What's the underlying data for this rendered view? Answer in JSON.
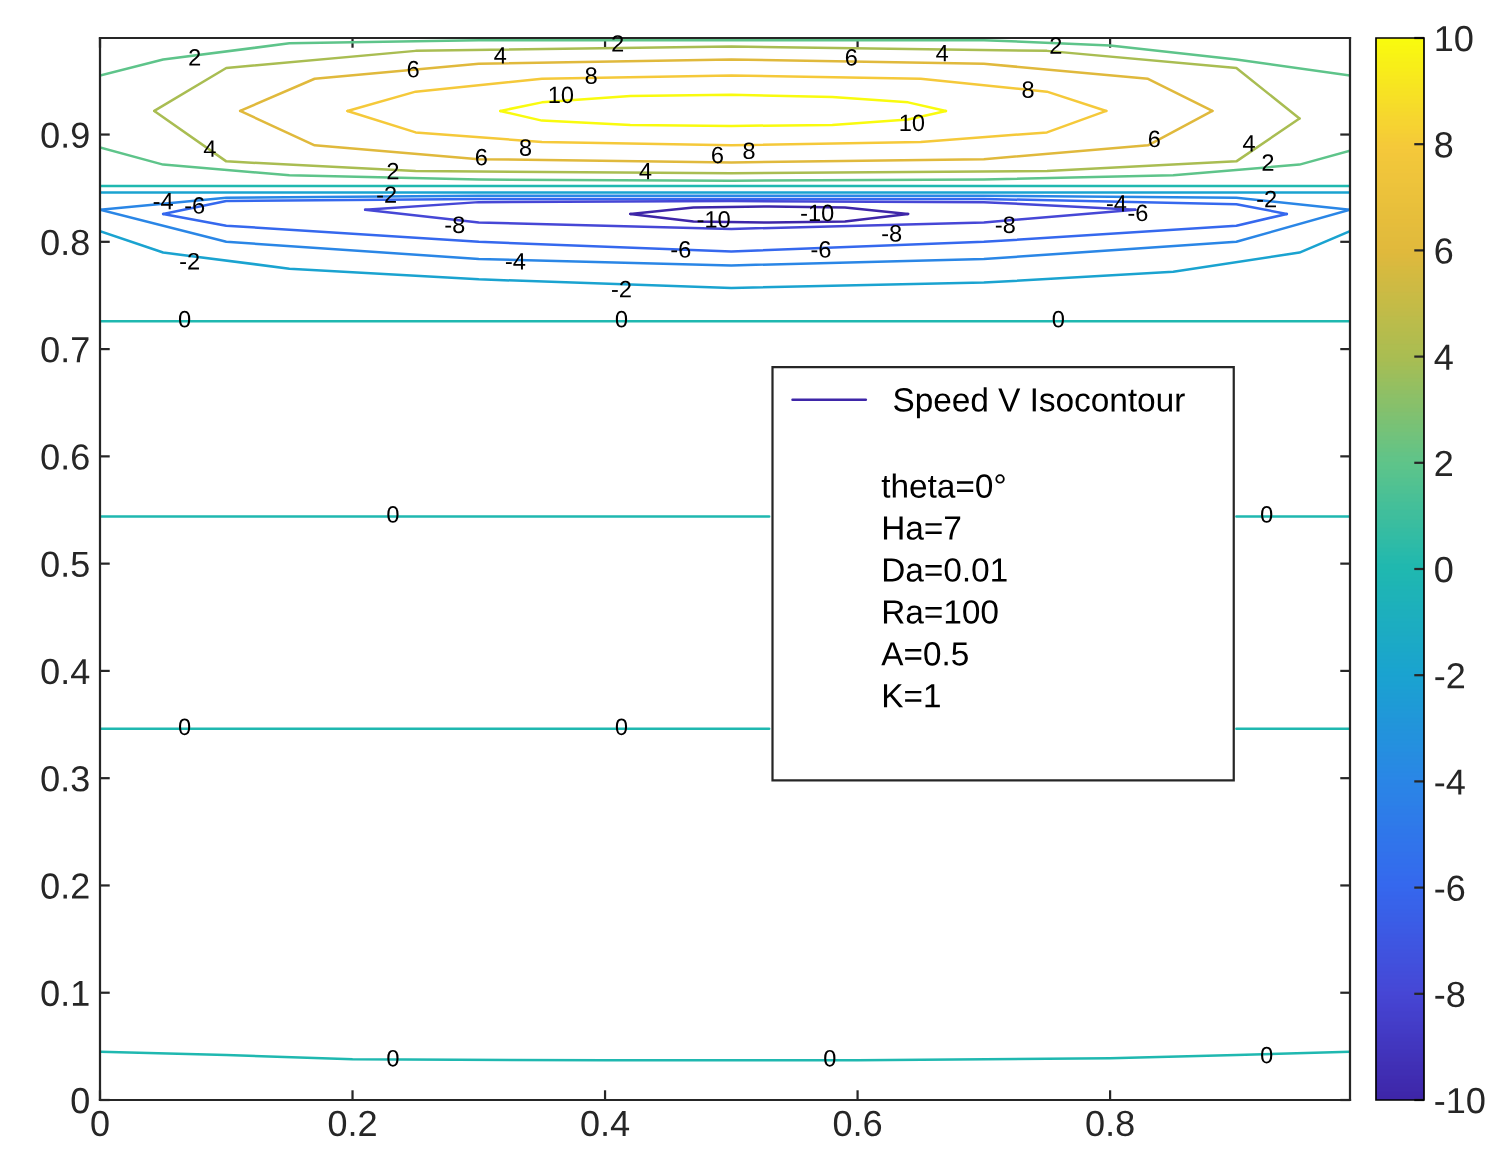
{
  "chart_data": {
    "type": "line",
    "xlim": [
      0,
      0.99
    ],
    "ylim": [
      0,
      0.99
    ],
    "xticks": [
      0,
      0.2,
      0.4,
      0.6,
      0.8
    ],
    "yticks": [
      0,
      0.1,
      0.2,
      0.3,
      0.4,
      0.5,
      0.6,
      0.7,
      0.8,
      0.9
    ],
    "grid": false,
    "legend": "right",
    "clim": [
      -10,
      10
    ],
    "cticks": [
      -10,
      -8,
      -6,
      -4,
      -2,
      0,
      2,
      4,
      6,
      8,
      10
    ],
    "series": [
      {
        "color": "#f9fb0e",
        "x": [
          0.317,
          0.35,
          0.42,
          0.5,
          0.58,
          0.64,
          0.67
        ],
        "values": [
          0.922,
          0.93,
          0.936,
          0.937,
          0.935,
          0.93,
          0.922
        ]
      },
      {
        "color": "#f9fb0e",
        "x": [
          0.317,
          0.35,
          0.42,
          0.5,
          0.58,
          0.64,
          0.67
        ],
        "values": [
          0.922,
          0.913,
          0.909,
          0.908,
          0.909,
          0.914,
          0.922
        ]
      },
      {
        "color": "#f5c93a",
        "x": [
          0.196,
          0.25,
          0.35,
          0.5,
          0.65,
          0.75,
          0.797
        ],
        "values": [
          0.922,
          0.94,
          0.952,
          0.955,
          0.952,
          0.94,
          0.922
        ]
      },
      {
        "color": "#f5c93a",
        "x": [
          0.196,
          0.25,
          0.35,
          0.5,
          0.65,
          0.75,
          0.797
        ],
        "values": [
          0.922,
          0.902,
          0.893,
          0.89,
          0.893,
          0.902,
          0.922
        ]
      },
      {
        "color": "#e0b93c",
        "x": [
          0.111,
          0.17,
          0.3,
          0.5,
          0.7,
          0.83,
          0.881
        ],
        "values": [
          0.922,
          0.952,
          0.966,
          0.97,
          0.966,
          0.952,
          0.922
        ]
      },
      {
        "color": "#e0b93c",
        "x": [
          0.111,
          0.17,
          0.3,
          0.5,
          0.7,
          0.83,
          0.881
        ],
        "values": [
          0.922,
          0.89,
          0.877,
          0.874,
          0.877,
          0.89,
          0.922
        ]
      },
      {
        "color": "#a9bd52",
        "x": [
          0.043,
          0.1,
          0.25,
          0.5,
          0.75,
          0.9,
          0.95
        ],
        "values": [
          0.922,
          0.962,
          0.978,
          0.982,
          0.978,
          0.962,
          0.915
        ]
      },
      {
        "color": "#a9bd52",
        "x": [
          0.043,
          0.1,
          0.25,
          0.5,
          0.75,
          0.9,
          0.95
        ],
        "values": [
          0.922,
          0.875,
          0.866,
          0.864,
          0.866,
          0.875,
          0.915
        ]
      },
      {
        "color": "#5ec48a",
        "x": [
          0,
          0.05,
          0.15,
          0.3,
          0.5,
          0.7,
          0.8,
          0.9,
          0.99
        ],
        "values": [
          0.955,
          0.97,
          0.985,
          0.988,
          0.988,
          0.988,
          0.983,
          0.97,
          0.955
        ]
      },
      {
        "color": "#5ec48a",
        "x": [
          0,
          0.05,
          0.15,
          0.3,
          0.5,
          0.7,
          0.85,
          0.95,
          0.99
        ],
        "values": [
          0.888,
          0.872,
          0.862,
          0.858,
          0.857,
          0.858,
          0.862,
          0.872,
          0.885
        ]
      },
      {
        "color": "#1fb8b0",
        "x": [
          0,
          0.3,
          0.6,
          0.99
        ],
        "values": [
          0.852,
          0.852,
          0.852,
          0.852
        ]
      },
      {
        "color": "#1aa3d0",
        "x": [
          0,
          0.3,
          0.6,
          0.99
        ],
        "values": [
          0.846,
          0.846,
          0.846,
          0.846
        ]
      },
      {
        "color": "#1aa3d0",
        "x": [
          0,
          0.05,
          0.15,
          0.3,
          0.5,
          0.7,
          0.85,
          0.95,
          0.99
        ],
        "values": [
          0.81,
          0.79,
          0.775,
          0.765,
          0.757,
          0.762,
          0.772,
          0.79,
          0.81
        ]
      },
      {
        "color": "#2a86e6",
        "x": [
          0,
          0.1,
          0.3,
          0.5,
          0.7,
          0.9,
          0.99
        ],
        "values": [
          0.83,
          0.841,
          0.843,
          0.843,
          0.843,
          0.841,
          0.83
        ]
      },
      {
        "color": "#2a86e6",
        "x": [
          0,
          0.1,
          0.3,
          0.5,
          0.7,
          0.9,
          0.99
        ],
        "values": [
          0.83,
          0.8,
          0.784,
          0.778,
          0.784,
          0.8,
          0.83
        ]
      },
      {
        "color": "#3568ee",
        "x": [
          0.05,
          0.1,
          0.3,
          0.5,
          0.7,
          0.9,
          0.94
        ],
        "values": [
          0.826,
          0.838,
          0.84,
          0.84,
          0.84,
          0.835,
          0.826
        ]
      },
      {
        "color": "#3568ee",
        "x": [
          0.05,
          0.1,
          0.3,
          0.5,
          0.7,
          0.9,
          0.94
        ],
        "values": [
          0.826,
          0.815,
          0.8,
          0.791,
          0.8,
          0.815,
          0.826
        ]
      },
      {
        "color": "#4647d6",
        "x": [
          0.21,
          0.3,
          0.5,
          0.7,
          0.82
        ],
        "values": [
          0.83,
          0.837,
          0.838,
          0.837,
          0.83
        ]
      },
      {
        "color": "#4647d6",
        "x": [
          0.21,
          0.3,
          0.5,
          0.7,
          0.82
        ],
        "values": [
          0.83,
          0.818,
          0.812,
          0.818,
          0.83
        ]
      },
      {
        "name": "Speed V Isocontour",
        "color": "#3e26a8",
        "x": [
          0.42,
          0.47,
          0.53,
          0.59,
          0.64
        ],
        "values": [
          0.826,
          0.832,
          0.833,
          0.832,
          0.826
        ]
      },
      {
        "color": "#3e26a8",
        "x": [
          0.42,
          0.47,
          0.53,
          0.59,
          0.64
        ],
        "values": [
          0.826,
          0.819,
          0.818,
          0.819,
          0.826
        ]
      },
      {
        "color": "#1fb8b0",
        "x": [
          0,
          0.3,
          0.6,
          0.99
        ],
        "values": [
          0.726,
          0.726,
          0.726,
          0.726
        ]
      },
      {
        "color": "#1fb8b0",
        "x": [
          0,
          0.3,
          0.53,
          0.6,
          0.9,
          0.99
        ],
        "values": [
          0.544,
          0.544,
          0.544,
          null,
          0.544,
          0.544
        ]
      },
      {
        "color": "#1fb8b0",
        "x": [
          0,
          0.3,
          0.53,
          0.6,
          0.9,
          0.99
        ],
        "values": [
          0.346,
          0.346,
          0.346,
          null,
          0.346,
          0.346
        ]
      },
      {
        "color": "#1fb8b0",
        "x": [
          0,
          0.1,
          0.2,
          0.4,
          0.6,
          0.8,
          0.9,
          0.99
        ],
        "values": [
          0.045,
          0.042,
          0.038,
          0.037,
          0.037,
          0.039,
          0.042,
          0.045
        ]
      }
    ],
    "annotations": [
      {
        "text": "2",
        "x": 0.075,
        "y": 0.97
      },
      {
        "text": "6",
        "x": 0.248,
        "y": 0.959
      },
      {
        "text": "4",
        "x": 0.317,
        "y": 0.972
      },
      {
        "text": "2",
        "x": 0.41,
        "y": 0.983
      },
      {
        "text": "10",
        "x": 0.365,
        "y": 0.935
      },
      {
        "text": "8",
        "x": 0.389,
        "y": 0.953
      },
      {
        "text": "6",
        "x": 0.595,
        "y": 0.97
      },
      {
        "text": "4",
        "x": 0.667,
        "y": 0.974
      },
      {
        "text": "2",
        "x": 0.757,
        "y": 0.981
      },
      {
        "text": "8",
        "x": 0.735,
        "y": 0.94
      },
      {
        "text": "10",
        "x": 0.643,
        "y": 0.909
      },
      {
        "text": "6",
        "x": 0.835,
        "y": 0.894
      },
      {
        "text": "4",
        "x": 0.91,
        "y": 0.89
      },
      {
        "text": "2",
        "x": 0.925,
        "y": 0.872
      },
      {
        "text": "4",
        "x": 0.087,
        "y": 0.885
      },
      {
        "text": "6",
        "x": 0.302,
        "y": 0.877
      },
      {
        "text": "8",
        "x": 0.337,
        "y": 0.886
      },
      {
        "text": "6",
        "x": 0.489,
        "y": 0.879
      },
      {
        "text": "8",
        "x": 0.514,
        "y": 0.883
      },
      {
        "text": "4",
        "x": 0.432,
        "y": 0.864
      },
      {
        "text": "2",
        "x": 0.232,
        "y": 0.864
      },
      {
        "text": "-2",
        "x": 0.227,
        "y": 0.842
      },
      {
        "text": "-4",
        "x": 0.05,
        "y": 0.836
      },
      {
        "text": "-6",
        "x": 0.075,
        "y": 0.832
      },
      {
        "text": "-8",
        "x": 0.281,
        "y": 0.814
      },
      {
        "text": "-2",
        "x": 0.071,
        "y": 0.78
      },
      {
        "text": "-4",
        "x": 0.329,
        "y": 0.78
      },
      {
        "text": "-2",
        "x": 0.413,
        "y": 0.754
      },
      {
        "text": "-10",
        "x": 0.486,
        "y": 0.819
      },
      {
        "text": "-6",
        "x": 0.46,
        "y": 0.791
      },
      {
        "text": "-10",
        "x": 0.568,
        "y": 0.825
      },
      {
        "text": "-8",
        "x": 0.627,
        "y": 0.806
      },
      {
        "text": "-6",
        "x": 0.571,
        "y": 0.791
      },
      {
        "text": "-8",
        "x": 0.717,
        "y": 0.814
      },
      {
        "text": "-4",
        "x": 0.805,
        "y": 0.834
      },
      {
        "text": "-6",
        "x": 0.822,
        "y": 0.825
      },
      {
        "text": "-2",
        "x": 0.924,
        "y": 0.838
      },
      {
        "text": "0",
        "x": 0.067,
        "y": 0.726
      },
      {
        "text": "0",
        "x": 0.413,
        "y": 0.726
      },
      {
        "text": "0",
        "x": 0.759,
        "y": 0.726
      },
      {
        "text": "0",
        "x": 0.232,
        "y": 0.544
      },
      {
        "text": "0",
        "x": 0.924,
        "y": 0.544
      },
      {
        "text": "0",
        "x": 0.067,
        "y": 0.346
      },
      {
        "text": "0",
        "x": 0.413,
        "y": 0.346
      },
      {
        "text": "0",
        "x": 0.232,
        "y": 0.037
      },
      {
        "text": "0",
        "x": 0.578,
        "y": 0.037
      },
      {
        "text": "0",
        "x": 0.924,
        "y": 0.04
      },
      "theta=0°",
      "Ha=7",
      "Da=0.01",
      "Ra=100",
      "A=0.5",
      "K=1"
    ]
  }
}
